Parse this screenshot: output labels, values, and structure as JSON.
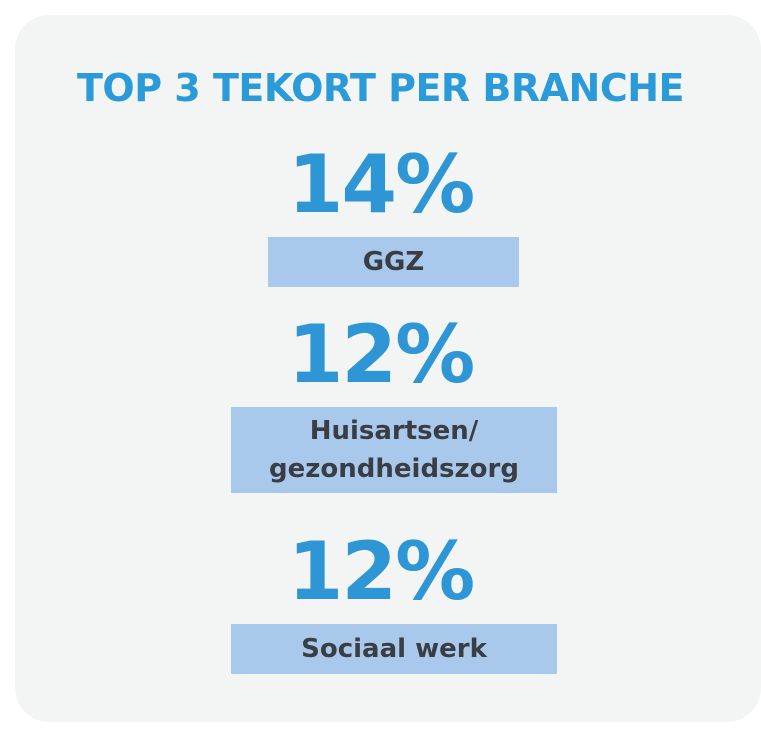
{
  "title": "TOP 3 TEKORT PER BRANCHE",
  "items": [
    {
      "value": "14%",
      "label": [
        "GGZ"
      ]
    },
    {
      "value": "12%",
      "label": [
        "Huisartsen/",
        "gezondheidszorg"
      ]
    },
    {
      "value": "12%",
      "label": [
        "Sociaal werk"
      ]
    }
  ]
}
